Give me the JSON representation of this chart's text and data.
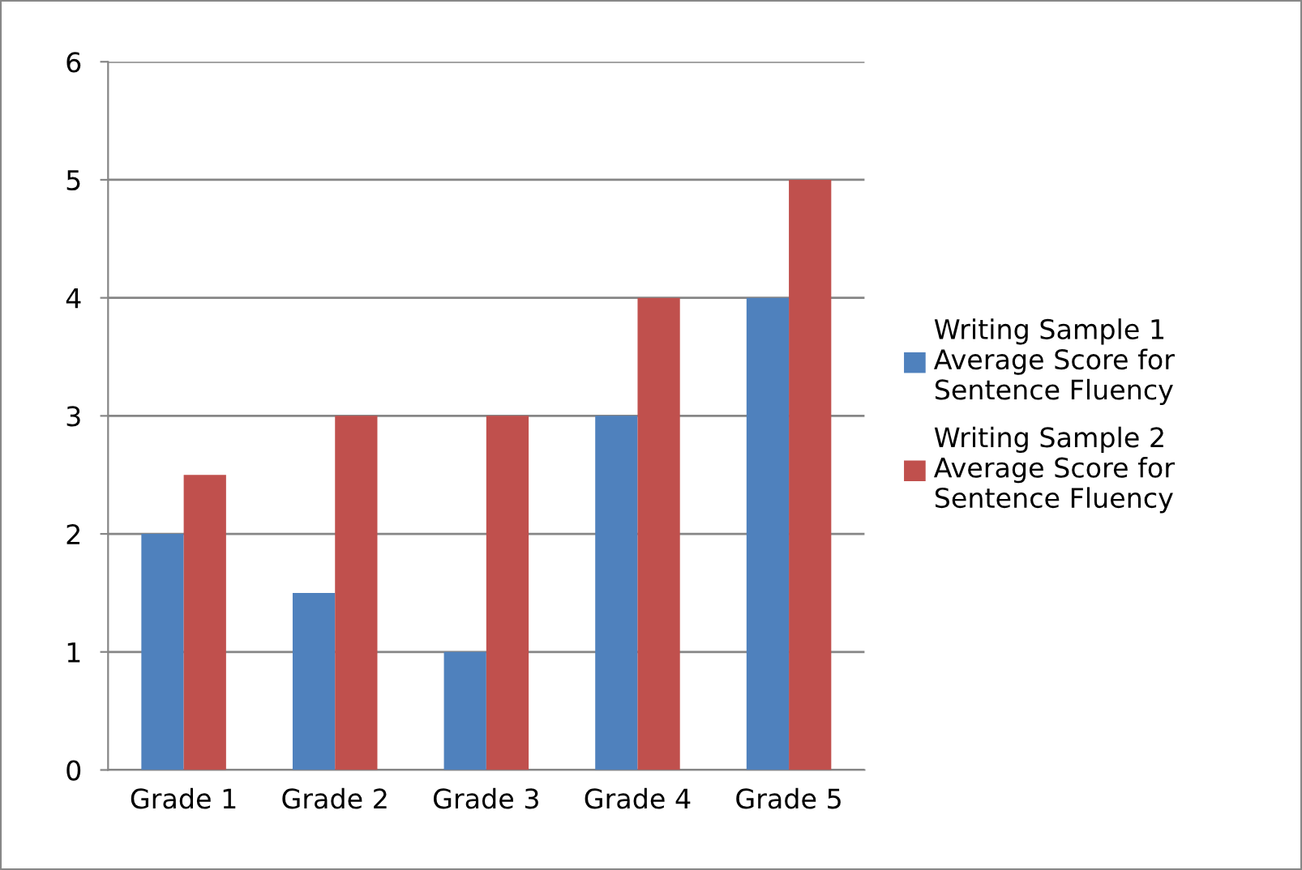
{
  "chart_data": {
    "type": "bar",
    "categories": [
      "Grade 1",
      "Grade 2",
      "Grade 3",
      "Grade 4",
      "Grade 5"
    ],
    "series": [
      {
        "name": "Writing Sample 1\nAverage Score for\nSentence Fluency",
        "color": "#4f81bd",
        "values": [
          2,
          1.5,
          1,
          3,
          4
        ]
      },
      {
        "name": "Writing Sample 2\nAverage Score for\nSentence Fluency",
        "color": "#c0504d",
        "values": [
          2.5,
          3,
          3,
          4,
          5
        ]
      }
    ],
    "ylim": [
      0,
      6
    ],
    "yticks": [
      0,
      1,
      2,
      3,
      4,
      5,
      6
    ],
    "grid": "y",
    "legend": "right"
  }
}
